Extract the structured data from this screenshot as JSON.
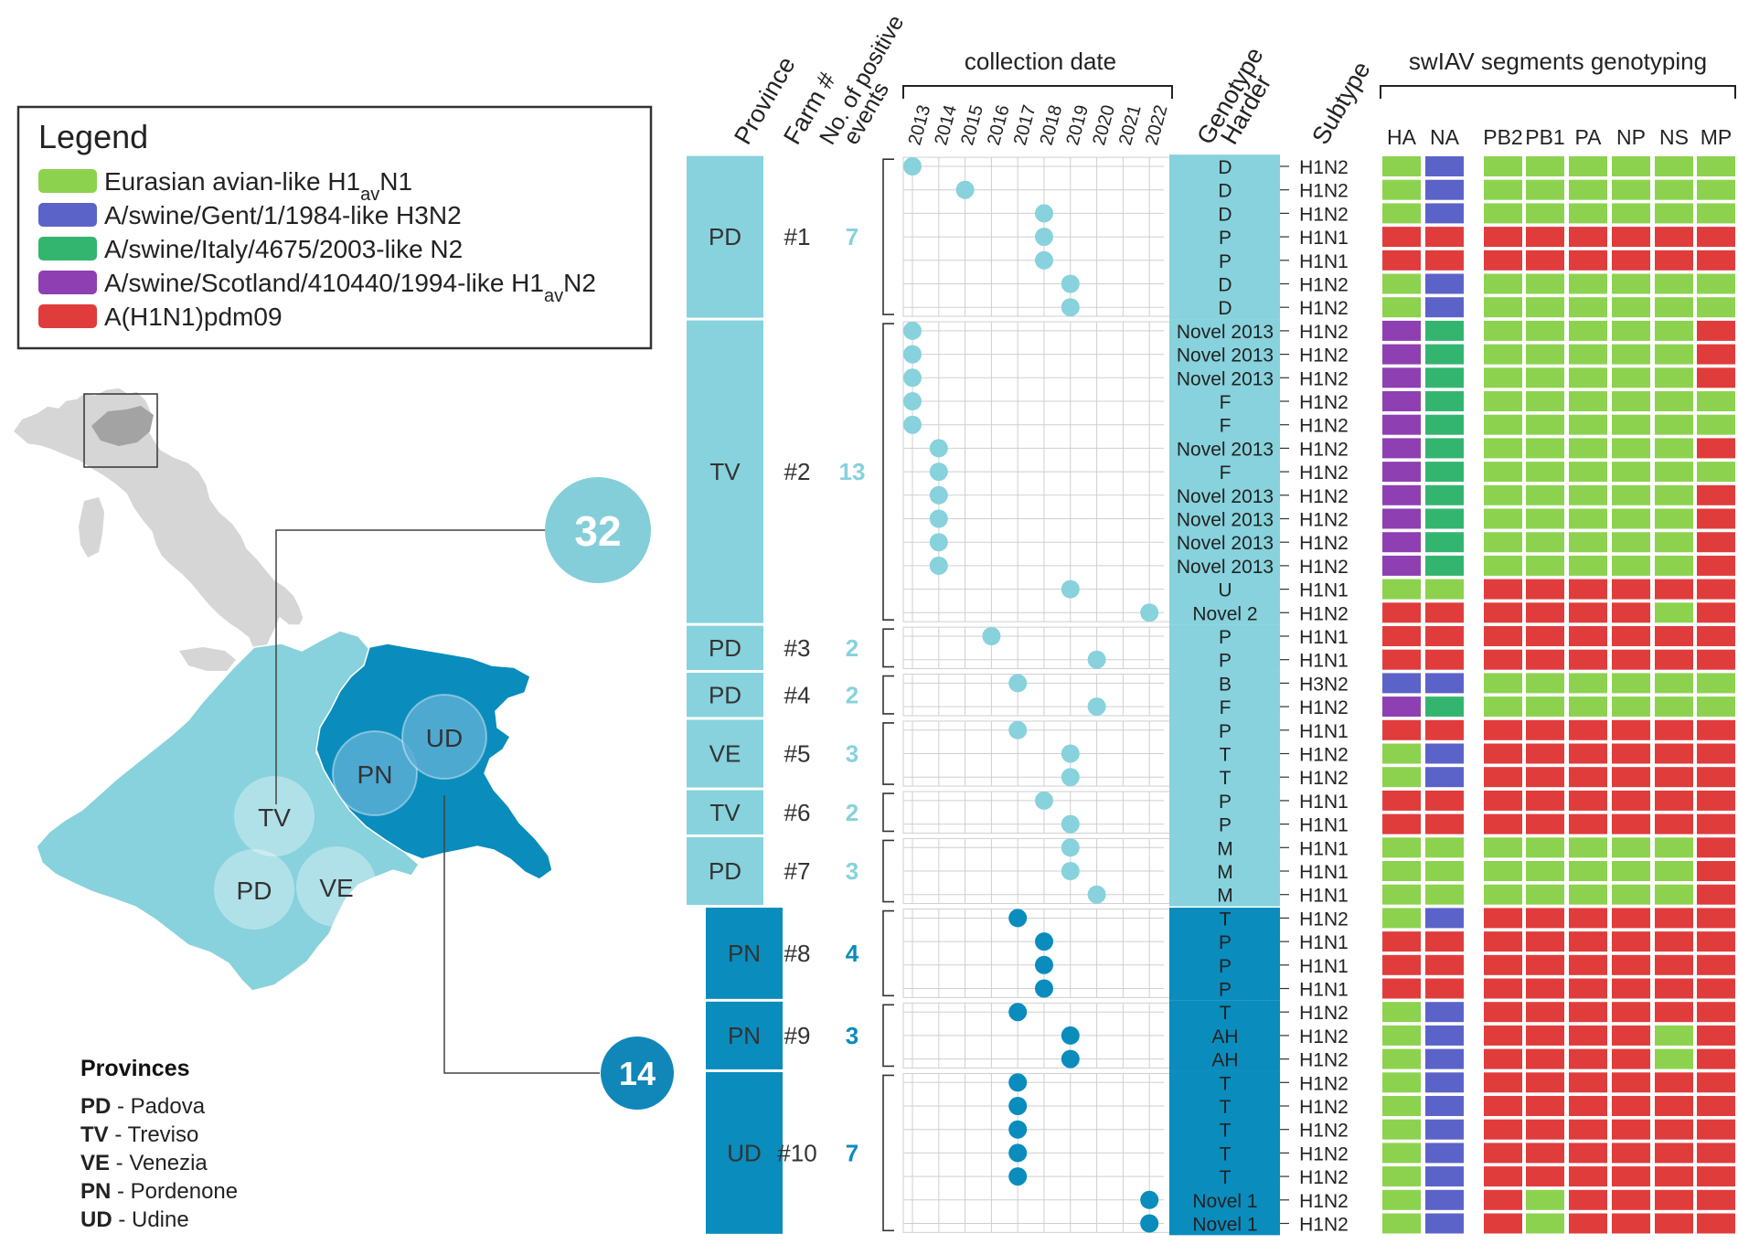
{
  "legend": {
    "title": "Legend",
    "items": [
      {
        "key": "EA",
        "label": "Eurasian avian-like H1avN1",
        "parts": [
          [
            "Eurasian avian-like H1",
            false
          ],
          [
            "av",
            true
          ],
          [
            "N1",
            false
          ]
        ],
        "color": "#8cd24f"
      },
      {
        "key": "GENT",
        "label": "A/swine/Gent/1/1984-like H3N2",
        "parts": [
          [
            "A/swine/Gent/1/1984-like H3N2",
            false
          ]
        ],
        "color": "#5b63c9"
      },
      {
        "key": "IT",
        "label": "A/swine/Italy/4675/2003-like N2",
        "parts": [
          [
            "A/swine/Italy/4675/2003-like N2",
            false
          ]
        ],
        "color": "#34b56f"
      },
      {
        "key": "SCOT",
        "label": "A/swine/Scotland/410440/1994-like H1avN2",
        "parts": [
          [
            "A/swine/Scotland/410440/1994-like H1",
            false
          ],
          [
            "av",
            true
          ],
          [
            "N2",
            false
          ]
        ],
        "color": "#8e3fb2"
      },
      {
        "key": "PDM",
        "label": "A(H1N1)pdm09",
        "parts": [
          [
            "A(H1N1)pdm09",
            false
          ]
        ],
        "color": "#e03c3c"
      }
    ]
  },
  "colors": {
    "light": "#87d2dc",
    "dark": "#0a8cbd",
    "circle_light": "#84ced9",
    "circle_dark": "#1087b8",
    "map_gray": "#d6d6d6",
    "map_region": "#a3a3a3",
    "ud_circle": "#5aaed5"
  },
  "map": {
    "big_count": "32",
    "small_count": "14",
    "labels": [
      "TV",
      "PD",
      "VE",
      "PN",
      "UD"
    ]
  },
  "provinces": {
    "title": "Provinces",
    "items": [
      {
        "code": "PD",
        "name": " - Padova"
      },
      {
        "code": "TV",
        "name": " - Treviso"
      },
      {
        "code": "VE",
        "name": " - Venezia"
      },
      {
        "code": "PN",
        "name": " - Pordenone"
      },
      {
        "code": "UD",
        "name": " - Udine"
      }
    ]
  },
  "headers": {
    "province": "Province",
    "farm": "Farm #",
    "events_line1": "No. of positive",
    "events_line2": "events",
    "collection_date": "collection date",
    "genotype_line1": "Genotype",
    "genotype_line2": "Harder",
    "subtype": "Subtype",
    "segments_title": "swIAV segments genotyping"
  },
  "years": [
    "2013",
    "2014",
    "2015",
    "2016",
    "2017",
    "2018",
    "2019",
    "2020",
    "2021",
    "2022"
  ],
  "segment_names": [
    "HA",
    "NA",
    "PB2",
    "PB1",
    "PA",
    "NP",
    "NS",
    "MP"
  ],
  "farms": [
    {
      "province": "PD",
      "farm": "#1",
      "events": "7",
      "color": "light",
      "rows": [
        {
          "year": "2013",
          "genotype": "D",
          "subtype": "H1N2",
          "seg": [
            "EA",
            "GENT",
            "EA",
            "EA",
            "EA",
            "EA",
            "EA",
            "EA"
          ]
        },
        {
          "year": "2015",
          "genotype": "D",
          "subtype": "H1N2",
          "seg": [
            "EA",
            "GENT",
            "EA",
            "EA",
            "EA",
            "EA",
            "EA",
            "EA"
          ]
        },
        {
          "year": "2018",
          "genotype": "D",
          "subtype": "H1N2",
          "seg": [
            "EA",
            "GENT",
            "EA",
            "EA",
            "EA",
            "EA",
            "EA",
            "EA"
          ]
        },
        {
          "year": "2018",
          "genotype": "P",
          "subtype": "H1N1",
          "seg": [
            "PDM",
            "PDM",
            "PDM",
            "PDM",
            "PDM",
            "PDM",
            "PDM",
            "PDM"
          ]
        },
        {
          "year": "2018",
          "genotype": "P",
          "subtype": "H1N1",
          "seg": [
            "PDM",
            "PDM",
            "PDM",
            "PDM",
            "PDM",
            "PDM",
            "PDM",
            "PDM"
          ]
        },
        {
          "year": "2019",
          "genotype": "D",
          "subtype": "H1N2",
          "seg": [
            "EA",
            "GENT",
            "EA",
            "EA",
            "EA",
            "EA",
            "EA",
            "EA"
          ]
        },
        {
          "year": "2019",
          "genotype": "D",
          "subtype": "H1N2",
          "seg": [
            "EA",
            "GENT",
            "EA",
            "EA",
            "EA",
            "EA",
            "EA",
            "EA"
          ]
        }
      ]
    },
    {
      "province": "TV",
      "farm": "#2",
      "events": "13",
      "color": "light",
      "rows": [
        {
          "year": "2013",
          "genotype": "Novel 2013",
          "subtype": "H1N2",
          "seg": [
            "SCOT",
            "IT",
            "EA",
            "EA",
            "EA",
            "EA",
            "EA",
            "PDM"
          ]
        },
        {
          "year": "2013",
          "genotype": "Novel 2013",
          "subtype": "H1N2",
          "seg": [
            "SCOT",
            "IT",
            "EA",
            "EA",
            "EA",
            "EA",
            "EA",
            "PDM"
          ]
        },
        {
          "year": "2013",
          "genotype": "Novel 2013",
          "subtype": "H1N2",
          "seg": [
            "SCOT",
            "IT",
            "EA",
            "EA",
            "EA",
            "EA",
            "EA",
            "PDM"
          ]
        },
        {
          "year": "2013",
          "genotype": "F",
          "subtype": "H1N2",
          "seg": [
            "SCOT",
            "IT",
            "EA",
            "EA",
            "EA",
            "EA",
            "EA",
            "EA"
          ]
        },
        {
          "year": "2013",
          "genotype": "F",
          "subtype": "H1N2",
          "seg": [
            "SCOT",
            "IT",
            "EA",
            "EA",
            "EA",
            "EA",
            "EA",
            "EA"
          ]
        },
        {
          "year": "2014",
          "genotype": "Novel 2013",
          "subtype": "H1N2",
          "seg": [
            "SCOT",
            "IT",
            "EA",
            "EA",
            "EA",
            "EA",
            "EA",
            "PDM"
          ]
        },
        {
          "year": "2014",
          "genotype": "F",
          "subtype": "H1N2",
          "seg": [
            "SCOT",
            "IT",
            "EA",
            "EA",
            "EA",
            "EA",
            "EA",
            "EA"
          ]
        },
        {
          "year": "2014",
          "genotype": "Novel 2013",
          "subtype": "H1N2",
          "seg": [
            "SCOT",
            "IT",
            "EA",
            "EA",
            "EA",
            "EA",
            "EA",
            "PDM"
          ]
        },
        {
          "year": "2014",
          "genotype": "Novel 2013",
          "subtype": "H1N2",
          "seg": [
            "SCOT",
            "IT",
            "EA",
            "EA",
            "EA",
            "EA",
            "EA",
            "PDM"
          ]
        },
        {
          "year": "2014",
          "genotype": "Novel 2013",
          "subtype": "H1N2",
          "seg": [
            "SCOT",
            "IT",
            "EA",
            "EA",
            "EA",
            "EA",
            "EA",
            "PDM"
          ]
        },
        {
          "year": "2014",
          "genotype": "Novel 2013",
          "subtype": "H1N2",
          "seg": [
            "SCOT",
            "IT",
            "EA",
            "EA",
            "EA",
            "EA",
            "EA",
            "PDM"
          ]
        },
        {
          "year": "2019",
          "genotype": "U",
          "subtype": "H1N1",
          "seg": [
            "EA",
            "EA",
            "PDM",
            "PDM",
            "PDM",
            "PDM",
            "PDM",
            "PDM"
          ]
        },
        {
          "year": "2022",
          "genotype": "Novel 2",
          "subtype": "H1N2",
          "seg": [
            "PDM",
            "PDM",
            "PDM",
            "PDM",
            "PDM",
            "PDM",
            "EA",
            "PDM"
          ]
        }
      ]
    },
    {
      "province": "PD",
      "farm": "#3",
      "events": "2",
      "color": "light",
      "rows": [
        {
          "year": "2016",
          "genotype": "P",
          "subtype": "H1N1",
          "seg": [
            "PDM",
            "PDM",
            "PDM",
            "PDM",
            "PDM",
            "PDM",
            "PDM",
            "PDM"
          ]
        },
        {
          "year": "2020",
          "genotype": "P",
          "subtype": "H1N1",
          "seg": [
            "PDM",
            "PDM",
            "PDM",
            "PDM",
            "PDM",
            "PDM",
            "PDM",
            "PDM"
          ]
        }
      ]
    },
    {
      "province": "PD",
      "farm": "#4",
      "events": "2",
      "color": "light",
      "rows": [
        {
          "year": "2017",
          "genotype": "B",
          "subtype": "H3N2",
          "seg": [
            "GENT",
            "GENT",
            "EA",
            "EA",
            "EA",
            "EA",
            "EA",
            "EA"
          ]
        },
        {
          "year": "2020",
          "genotype": "F",
          "subtype": "H1N2",
          "seg": [
            "SCOT",
            "IT",
            "EA",
            "EA",
            "EA",
            "EA",
            "EA",
            "EA"
          ]
        }
      ]
    },
    {
      "province": "VE",
      "farm": "#5",
      "events": "3",
      "color": "light",
      "rows": [
        {
          "year": "2017",
          "genotype": "P",
          "subtype": "H1N1",
          "seg": [
            "PDM",
            "PDM",
            "PDM",
            "PDM",
            "PDM",
            "PDM",
            "PDM",
            "PDM"
          ]
        },
        {
          "year": "2019",
          "genotype": "T",
          "subtype": "H1N2",
          "seg": [
            "EA",
            "GENT",
            "PDM",
            "PDM",
            "PDM",
            "PDM",
            "PDM",
            "PDM"
          ]
        },
        {
          "year": "2019",
          "genotype": "T",
          "subtype": "H1N2",
          "seg": [
            "EA",
            "GENT",
            "PDM",
            "PDM",
            "PDM",
            "PDM",
            "PDM",
            "PDM"
          ]
        }
      ]
    },
    {
      "province": "TV",
      "farm": "#6",
      "events": "2",
      "color": "light",
      "rows": [
        {
          "year": "2018",
          "genotype": "P",
          "subtype": "H1N1",
          "seg": [
            "PDM",
            "PDM",
            "PDM",
            "PDM",
            "PDM",
            "PDM",
            "PDM",
            "PDM"
          ]
        },
        {
          "year": "2019",
          "genotype": "P",
          "subtype": "H1N1",
          "seg": [
            "PDM",
            "PDM",
            "PDM",
            "PDM",
            "PDM",
            "PDM",
            "PDM",
            "PDM"
          ]
        }
      ]
    },
    {
      "province": "PD",
      "farm": "#7",
      "events": "3",
      "color": "light",
      "rows": [
        {
          "year": "2019",
          "genotype": "M",
          "subtype": "H1N1",
          "seg": [
            "EA",
            "EA",
            "EA",
            "EA",
            "EA",
            "EA",
            "EA",
            "PDM"
          ]
        },
        {
          "year": "2019",
          "genotype": "M",
          "subtype": "H1N1",
          "seg": [
            "EA",
            "EA",
            "EA",
            "EA",
            "EA",
            "EA",
            "EA",
            "PDM"
          ]
        },
        {
          "year": "2020",
          "genotype": "M",
          "subtype": "H1N1",
          "seg": [
            "EA",
            "EA",
            "EA",
            "EA",
            "EA",
            "EA",
            "EA",
            "PDM"
          ]
        }
      ]
    },
    {
      "province": "PN",
      "farm": "#8",
      "events": "4",
      "color": "dark",
      "rows": [
        {
          "year": "2017",
          "genotype": "T",
          "subtype": "H1N2",
          "seg": [
            "EA",
            "GENT",
            "PDM",
            "PDM",
            "PDM",
            "PDM",
            "PDM",
            "PDM"
          ]
        },
        {
          "year": "2018",
          "genotype": "P",
          "subtype": "H1N1",
          "seg": [
            "PDM",
            "PDM",
            "PDM",
            "PDM",
            "PDM",
            "PDM",
            "PDM",
            "PDM"
          ]
        },
        {
          "year": "2018",
          "genotype": "P",
          "subtype": "H1N1",
          "seg": [
            "PDM",
            "PDM",
            "PDM",
            "PDM",
            "PDM",
            "PDM",
            "PDM",
            "PDM"
          ]
        },
        {
          "year": "2018",
          "genotype": "P",
          "subtype": "H1N1",
          "seg": [
            "PDM",
            "PDM",
            "PDM",
            "PDM",
            "PDM",
            "PDM",
            "PDM",
            "PDM"
          ]
        }
      ]
    },
    {
      "province": "PN",
      "farm": "#9",
      "events": "3",
      "color": "dark",
      "rows": [
        {
          "year": "2017",
          "genotype": "T",
          "subtype": "H1N2",
          "seg": [
            "EA",
            "GENT",
            "PDM",
            "PDM",
            "PDM",
            "PDM",
            "PDM",
            "PDM"
          ]
        },
        {
          "year": "2019",
          "genotype": "AH",
          "subtype": "H1N2",
          "seg": [
            "EA",
            "GENT",
            "PDM",
            "PDM",
            "PDM",
            "PDM",
            "EA",
            "PDM"
          ]
        },
        {
          "year": "2019",
          "genotype": "AH",
          "subtype": "H1N2",
          "seg": [
            "EA",
            "GENT",
            "PDM",
            "PDM",
            "PDM",
            "PDM",
            "EA",
            "PDM"
          ]
        }
      ]
    },
    {
      "province": "UD",
      "farm": "#10",
      "events": "7",
      "color": "dark",
      "rows": [
        {
          "year": "2017",
          "genotype": "T",
          "subtype": "H1N2",
          "seg": [
            "EA",
            "GENT",
            "PDM",
            "PDM",
            "PDM",
            "PDM",
            "PDM",
            "PDM"
          ]
        },
        {
          "year": "2017",
          "genotype": "T",
          "subtype": "H1N2",
          "seg": [
            "EA",
            "GENT",
            "PDM",
            "PDM",
            "PDM",
            "PDM",
            "PDM",
            "PDM"
          ]
        },
        {
          "year": "2017",
          "genotype": "T",
          "subtype": "H1N2",
          "seg": [
            "EA",
            "GENT",
            "PDM",
            "PDM",
            "PDM",
            "PDM",
            "PDM",
            "PDM"
          ]
        },
        {
          "year": "2017",
          "genotype": "T",
          "subtype": "H1N2",
          "seg": [
            "EA",
            "GENT",
            "PDM",
            "PDM",
            "PDM",
            "PDM",
            "PDM",
            "PDM"
          ]
        },
        {
          "year": "2017",
          "genotype": "T",
          "subtype": "H1N2",
          "seg": [
            "EA",
            "GENT",
            "PDM",
            "PDM",
            "PDM",
            "PDM",
            "PDM",
            "PDM"
          ]
        },
        {
          "year": "2022",
          "genotype": "Novel 1",
          "subtype": "H1N2",
          "seg": [
            "EA",
            "GENT",
            "PDM",
            "EA",
            "PDM",
            "PDM",
            "PDM",
            "PDM"
          ]
        },
        {
          "year": "2022",
          "genotype": "Novel 1",
          "subtype": "H1N2",
          "seg": [
            "EA",
            "GENT",
            "PDM",
            "EA",
            "PDM",
            "PDM",
            "PDM",
            "PDM"
          ]
        }
      ]
    }
  ]
}
